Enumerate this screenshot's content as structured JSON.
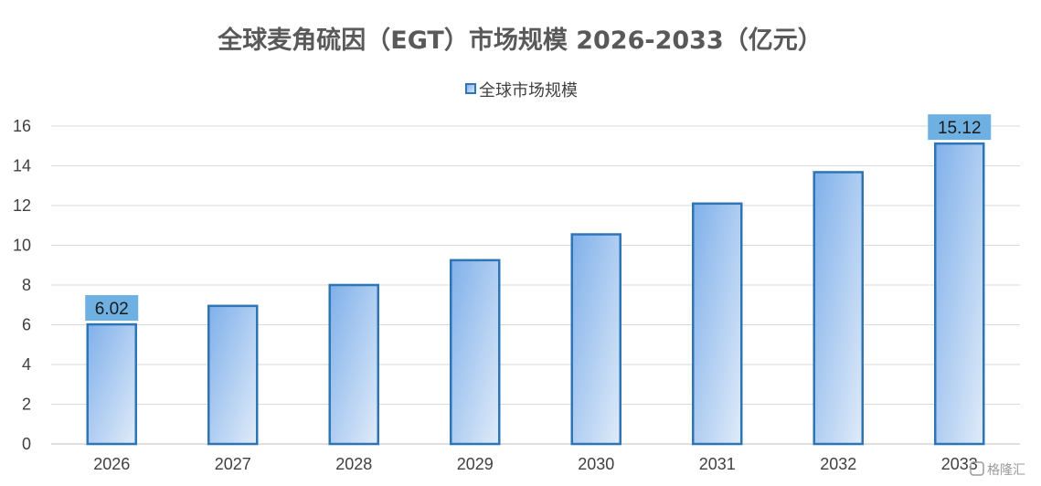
{
  "chart_data": {
    "type": "bar",
    "title": "全球麦角硫因（EGT）市场规模 2026-2033（亿元）",
    "categories": [
      "2026",
      "2027",
      "2028",
      "2029",
      "2030",
      "2031",
      "2032",
      "2033"
    ],
    "series": [
      {
        "name": "全球市场规模",
        "values": [
          6.02,
          6.95,
          8.0,
          9.25,
          10.55,
          12.1,
          13.68,
          15.12
        ]
      }
    ],
    "data_labels": [
      {
        "category": "2026",
        "text": "6.02"
      },
      {
        "category": "2033",
        "text": "15.12"
      }
    ],
    "ylim": [
      0,
      16
    ],
    "yticks": [
      0,
      2,
      4,
      6,
      8,
      10,
      12,
      14,
      16
    ],
    "xlabel": "",
    "ylabel": "",
    "grid": true,
    "legend_position": "top-center",
    "colors": {
      "bar_gradient_start": "#7fb0ea",
      "bar_gradient_end": "#e0ebf9",
      "bar_border": "#2e75b6",
      "label_box": "#6fb0e3",
      "grid": "#d9d9d9"
    }
  },
  "watermark": "格隆汇"
}
